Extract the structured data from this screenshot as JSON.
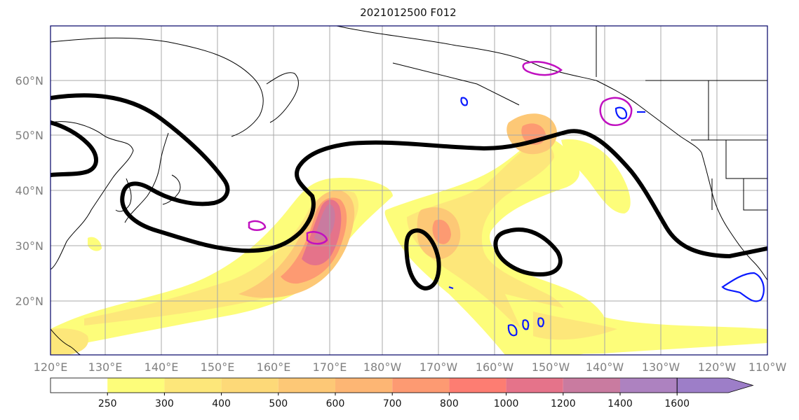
{
  "title": "2021012500 F012",
  "map": {
    "lat_labels": [
      "60°N",
      "50°N",
      "40°N",
      "30°N",
      "20°N"
    ],
    "lon_labels": [
      "120°E",
      "130°E",
      "140°E",
      "150°E",
      "160°E",
      "170°E",
      "180°W",
      "170°W",
      "160°W",
      "150°W",
      "140°W",
      "130°W",
      "120°W",
      "110°W"
    ],
    "label_color": "#808080",
    "coastline_color": "#000000",
    "contour_color": "#000000",
    "blue_contour_color": "#0a1aff",
    "magenta_contour_color": "#c010c0"
  },
  "colorbar": {
    "ticks": [
      "250",
      "300",
      "400",
      "500",
      "600",
      "700",
      "800",
      "1000",
      "1200",
      "1400",
      "1600"
    ],
    "colors": [
      "#ffffff",
      "#fdfd7a",
      "#fde77a",
      "#fdd978",
      "#fdc876",
      "#fdb674",
      "#fd9a72",
      "#fd7d72",
      "#e5738a",
      "#c97ba0",
      "#ad82c0",
      "#9d7ec8"
    ]
  }
}
